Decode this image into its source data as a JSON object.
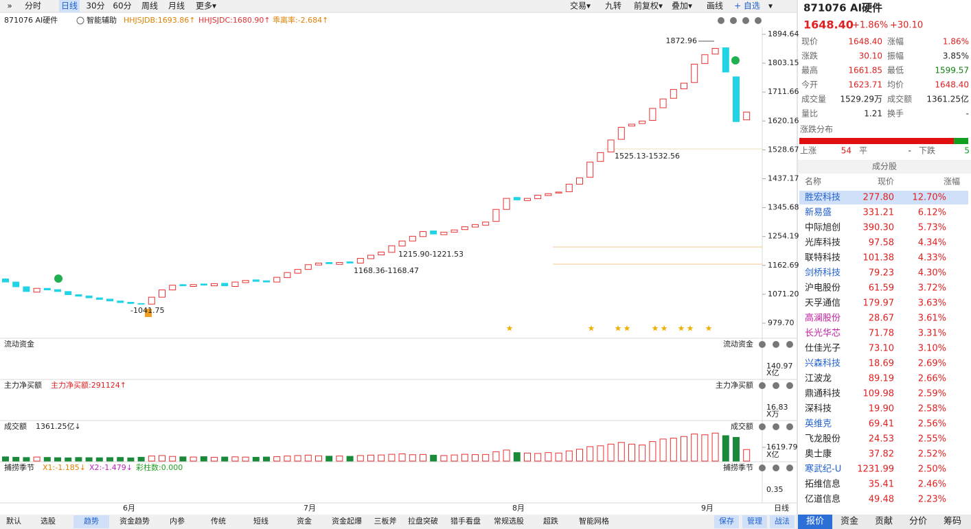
{
  "toolbar": {
    "left": [
      "»",
      "分时",
      "日线",
      "30分",
      "60分",
      "周线",
      "月线",
      "更多▾"
    ],
    "selected": 2,
    "right": [
      "交易▾",
      "九转",
      "前复权▾",
      "叠加▾",
      "画线",
      "+ 自选",
      "▾"
    ]
  },
  "chart_header": {
    "symbol": "871076 AI硬件",
    "assist": "智能辅助",
    "indicators": [
      {
        "text": "HHJSJDB:1693.86↑",
        "color": "#e08000"
      },
      {
        "text": "HHJSJDC:1680.90↑",
        "color": "#e03030"
      },
      {
        "text": "乖离率:-2.684↑",
        "color": "#e08000"
      }
    ]
  },
  "chart_data": [
    {
      "type": "candlestick",
      "open": [
        1120,
        1110,
        1095,
        1078,
        1090,
        1086,
        1080,
        1070,
        1066,
        1060,
        1056,
        1050,
        1046,
        1042,
        1040,
        1062,
        1085,
        1102,
        1096,
        1104,
        1098,
        1106,
        1096,
        1108,
        1117,
        1114,
        1110,
        1124,
        1138,
        1150,
        1164,
        1172,
        1166,
        1174,
        1170,
        1184,
        1196,
        1204,
        1224,
        1240,
        1254,
        1272,
        1260,
        1268,
        1276,
        1284,
        1290,
        1302,
        1340,
        1378,
        1368,
        1374,
        1384,
        1392,
        1396,
        1420,
        1442,
        1492,
        1522,
        1562,
        1604,
        1612,
        1622,
        1662,
        1692,
        1722,
        1742,
        1802,
        1832,
        1852,
        1760,
        1623.71
      ],
      "close": [
        1110,
        1095,
        1080,
        1090,
        1085,
        1080,
        1070,
        1065,
        1060,
        1055,
        1050,
        1045,
        1042,
        1040,
        1062,
        1085,
        1100,
        1098,
        1102,
        1100,
        1105,
        1098,
        1110,
        1115,
        1112,
        1110,
        1125,
        1140,
        1150,
        1165,
        1170,
        1168,
        1172,
        1170,
        1185,
        1195,
        1205,
        1225,
        1240,
        1255,
        1270,
        1262,
        1268,
        1275,
        1285,
        1292,
        1300,
        1340,
        1375,
        1370,
        1375,
        1385,
        1390,
        1395,
        1420,
        1440,
        1490,
        1520,
        1560,
        1600,
        1610,
        1620,
        1660,
        1690,
        1720,
        1740,
        1800,
        1830,
        1850,
        1775,
        1618,
        1648.4
      ],
      "up_color": "#e83030",
      "down_color": "#22d3e6",
      "ylim": [
        934.1,
        1916.37
      ],
      "yticks": [
        1894.64,
        1803.15,
        1711.66,
        1620.16,
        1528.67,
        1437.17,
        1345.68,
        1254.19,
        1162.69,
        {
          "value": 1071.2,
          "label": "1071.20"
        },
        {
          "value": 979.7,
          "label": "979.70"
        }
      ],
      "annotations": [
        "1872.96",
        "1525.13-1532.56",
        "1215.90-1221.53",
        "1168.36-1168.47",
        "-1041.75"
      ],
      "x_labels": [
        "6月",
        "7月",
        "8月",
        "9月"
      ],
      "period": "日线"
    },
    {
      "type": "bar",
      "title": "成交额",
      "header_value": "1361.25亿↓",
      "unit": "X亿",
      "values": [
        500,
        450,
        420,
        480,
        430,
        400,
        380,
        420,
        400,
        390,
        410,
        430,
        380,
        450,
        600,
        650,
        550,
        500,
        480,
        520,
        450,
        480,
        500,
        470,
        450,
        480,
        520,
        600,
        650,
        700,
        620,
        580,
        600,
        560,
        650,
        700,
        720,
        800,
        850,
        750,
        780,
        700,
        650,
        720,
        800,
        760,
        780,
        1100,
        1300,
        1000,
        950,
        900,
        1000,
        950,
        1200,
        1400,
        1700,
        1800,
        2000,
        2200,
        2000,
        1900,
        2300,
        2600,
        2700,
        2900,
        3200,
        3100,
        3300,
        3000,
        2800,
        1361.25
      ],
      "ylim": [
        0,
        3400
      ],
      "yticks": [
        1619.79
      ]
    }
  ],
  "panels": [
    {
      "title": "流动资金",
      "info": [],
      "tick": "140.97",
      "unit": "X亿"
    },
    {
      "title": "主力净买额",
      "info": [
        "主力净买额:291124↑"
      ],
      "tick": "16.83",
      "unit": "X万"
    },
    {
      "title": "捕捞季节",
      "info": [
        "X1:-1.185↓",
        "X2:-1.479↓",
        "彩柱数:0.000"
      ],
      "tick": "0.35",
      "unit": ""
    }
  ],
  "right_panel": {
    "title": "871076 AI硬件",
    "price": "1648.40",
    "change_pct": "+1.86%",
    "change": "+30.10",
    "quote": [
      {
        "label": "现价",
        "value": "1648.40",
        "color": "#e02020"
      },
      {
        "label": "涨幅",
        "value": "1.86%",
        "color": "#e02020"
      },
      {
        "label": "涨跌",
        "value": "30.10",
        "color": "#e02020"
      },
      {
        "label": "振幅",
        "value": "3.85%",
        "color": "#222"
      },
      {
        "label": "最高",
        "value": "1661.85",
        "color": "#e02020"
      },
      {
        "label": "最低",
        "value": "1599.57",
        "color": "#108010"
      },
      {
        "label": "今开",
        "value": "1623.71",
        "color": "#e02020"
      },
      {
        "label": "均价",
        "value": "1648.40",
        "color": "#e02020"
      },
      {
        "label": "成交量",
        "value": "1529.29万",
        "color": "#222"
      },
      {
        "label": "成交额",
        "value": "1361.25亿",
        "color": "#222"
      },
      {
        "label": "量比",
        "value": "1.21",
        "color": "#222"
      },
      {
        "label": "换手",
        "value": "-",
        "color": "#222"
      }
    ],
    "dist_title": "涨跌分布",
    "dist": {
      "up_label": "上涨",
      "up": 54,
      "flat_label": "平",
      "flat": "-",
      "down_label": "下跌",
      "down": 5
    },
    "constituents_title": "成分股",
    "headers": [
      "名称",
      "现价",
      "涨幅"
    ],
    "selected": 0,
    "rows": [
      {
        "name": "胜宏科技",
        "price": "277.80",
        "change": "12.70%",
        "color": "#2060d0"
      },
      {
        "name": "新易盛",
        "price": "331.21",
        "change": "6.12%",
        "color": "#2060d0"
      },
      {
        "name": "中际旭创",
        "price": "390.30",
        "change": "5.73%",
        "color": "#222"
      },
      {
        "name": "光库科技",
        "price": "97.58",
        "change": "4.34%",
        "color": "#222"
      },
      {
        "name": "联特科技",
        "price": "101.38",
        "change": "4.33%",
        "color": "#222"
      },
      {
        "name": "剑桥科技",
        "price": "79.23",
        "change": "4.30%",
        "color": "#2060d0"
      },
      {
        "name": "沪电股份",
        "price": "61.59",
        "change": "3.72%",
        "color": "#222"
      },
      {
        "name": "天孚通信",
        "price": "179.97",
        "change": "3.63%",
        "color": "#222"
      },
      {
        "name": "高澜股份",
        "price": "28.67",
        "change": "3.61%",
        "color": "#c020a0"
      },
      {
        "name": "长光华芯",
        "price": "71.78",
        "change": "3.31%",
        "color": "#c020a0"
      },
      {
        "name": "仕佳光子",
        "price": "73.10",
        "change": "3.10%",
        "color": "#222"
      },
      {
        "name": "兴森科技",
        "price": "18.69",
        "change": "2.69%",
        "color": "#2060d0"
      },
      {
        "name": "江波龙",
        "price": "89.19",
        "change": "2.66%",
        "color": "#222"
      },
      {
        "name": "鼎通科技",
        "price": "109.98",
        "change": "2.59%",
        "color": "#222"
      },
      {
        "name": "深科技",
        "price": "19.90",
        "change": "2.58%",
        "color": "#222"
      },
      {
        "name": "英维克",
        "price": "69.41",
        "change": "2.56%",
        "color": "#2060d0"
      },
      {
        "name": "飞龙股份",
        "price": "24.53",
        "change": "2.55%",
        "color": "#222"
      },
      {
        "name": "奥士康",
        "price": "37.82",
        "change": "2.52%",
        "color": "#222"
      },
      {
        "name": "寒武纪-U",
        "price": "1231.99",
        "change": "2.50%",
        "color": "#2060d0"
      },
      {
        "name": "拓维信息",
        "price": "35.41",
        "change": "2.46%",
        "color": "#222"
      },
      {
        "name": "亿道信息",
        "price": "49.48",
        "change": "2.23%",
        "color": "#222"
      }
    ],
    "tabs": [
      "报价",
      "资金",
      "贡献",
      "分价",
      "筹码"
    ],
    "tab_selected": 0
  },
  "bottom_tabs": {
    "left": [
      "默认",
      "选股",
      "趋势",
      "资金趋势",
      "内参",
      "传统",
      "短线",
      "资金",
      "资金起爆",
      "三板斧",
      "拉盘突破",
      "猎手看盘",
      "常规选股",
      "超跌",
      "智能网格"
    ],
    "selected": 2,
    "right": [
      "保存",
      "管理",
      "战法"
    ]
  }
}
